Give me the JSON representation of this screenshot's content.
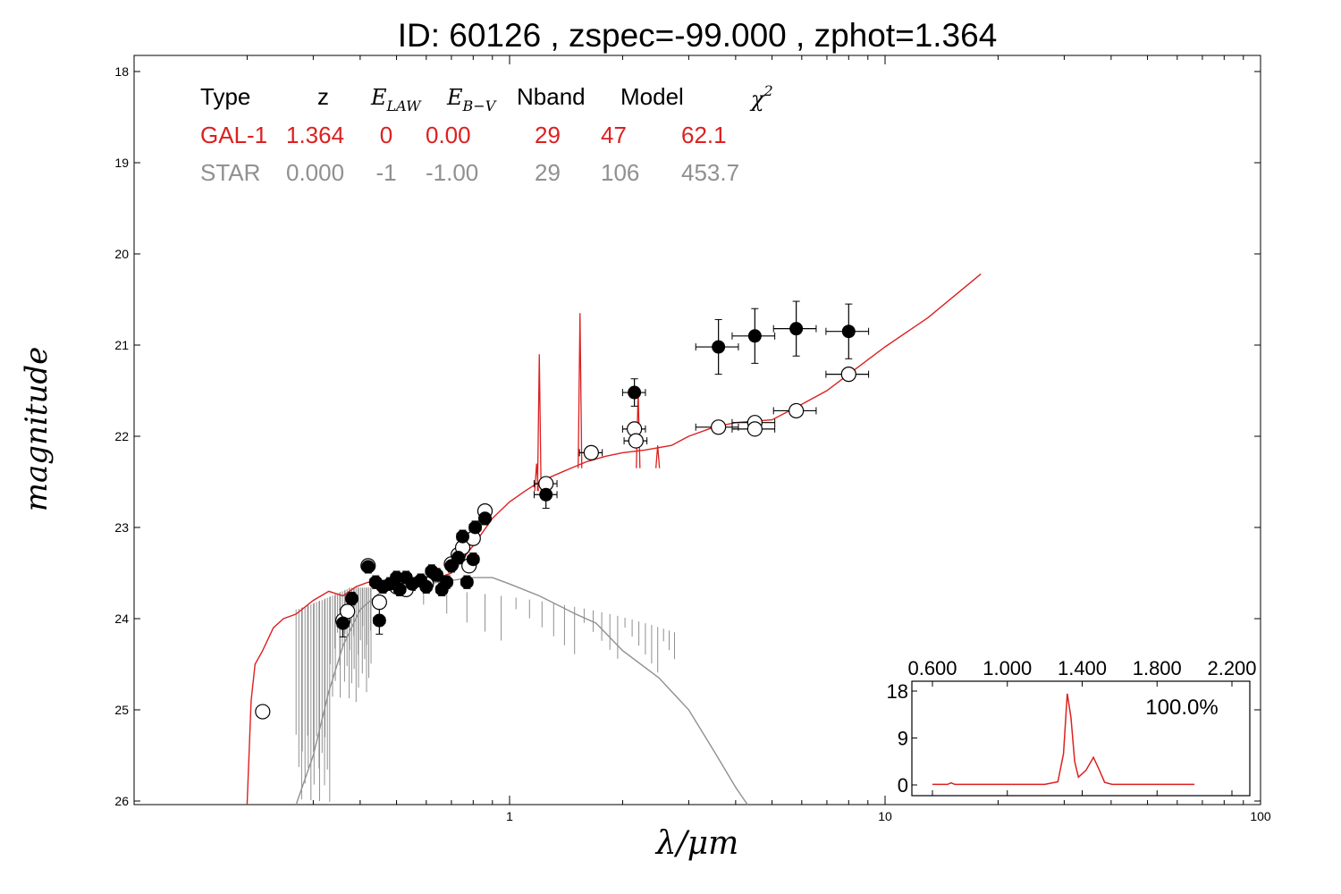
{
  "title": "ID:  60126 , zspec=-99.000 , zphot=1.364",
  "colors": {
    "galaxy": "#dd2020",
    "star": "#909090",
    "axes": "#000000"
  },
  "table": {
    "headers": [
      "Type",
      "z",
      "E",
      "LAW",
      "E",
      "B−V",
      "Nband",
      "Model",
      "χ",
      "2"
    ],
    "rows": [
      {
        "name": "GAL-1",
        "cells": [
          "GAL-1",
          "1.364",
          "0",
          "0.00",
          "29",
          "47",
          "62.1"
        ],
        "color": "#dd2020"
      },
      {
        "name": "STAR",
        "cells": [
          "STAR",
          "0.000",
          "-1",
          "-1.00",
          "29",
          "106",
          "453.7"
        ],
        "color": "#909090"
      }
    ]
  },
  "chart_data": [
    {
      "type": "scatter",
      "xlabel": "λ/μm",
      "ylabel": "magnitude",
      "xscale": "log",
      "xlim": [
        0.1,
        100
      ],
      "ylim": [
        26,
        18
      ],
      "xticks": [
        "1",
        "10",
        "100"
      ],
      "yticks": [
        "18",
        "19",
        "20",
        "21",
        "22",
        "23",
        "24",
        "25",
        "26"
      ],
      "observed_magnitudes": [
        {
          "x": 0.36,
          "y": 24.05
        },
        {
          "x": 0.38,
          "y": 23.78
        },
        {
          "x": 0.42,
          "y": 23.43
        },
        {
          "x": 0.44,
          "y": 23.6
        },
        {
          "x": 0.45,
          "y": 24.02
        },
        {
          "x": 0.46,
          "y": 23.65
        },
        {
          "x": 0.48,
          "y": 23.62
        },
        {
          "x": 0.5,
          "y": 23.55
        },
        {
          "x": 0.51,
          "y": 23.68
        },
        {
          "x": 0.53,
          "y": 23.55
        },
        {
          "x": 0.55,
          "y": 23.62
        },
        {
          "x": 0.58,
          "y": 23.58
        },
        {
          "x": 0.6,
          "y": 23.65
        },
        {
          "x": 0.62,
          "y": 23.48
        },
        {
          "x": 0.64,
          "y": 23.52
        },
        {
          "x": 0.66,
          "y": 23.68
        },
        {
          "x": 0.68,
          "y": 23.6
        },
        {
          "x": 0.7,
          "y": 23.42
        },
        {
          "x": 0.73,
          "y": 23.33
        },
        {
          "x": 0.75,
          "y": 23.1
        },
        {
          "x": 0.77,
          "y": 23.6
        },
        {
          "x": 0.8,
          "y": 23.35
        },
        {
          "x": 0.81,
          "y": 23.0
        },
        {
          "x": 0.86,
          "y": 22.9
        },
        {
          "x": 1.25,
          "y": 22.64
        },
        {
          "x": 2.15,
          "y": 21.52
        },
        {
          "x": 3.6,
          "y": 21.02
        },
        {
          "x": 4.5,
          "y": 20.9
        },
        {
          "x": 5.8,
          "y": 20.82
        },
        {
          "x": 8.0,
          "y": 20.85
        }
      ],
      "model_magnitudes": [
        {
          "x": 0.22,
          "y": 25.02
        },
        {
          "x": 0.36,
          "y": 24.02
        },
        {
          "x": 0.37,
          "y": 23.92
        },
        {
          "x": 0.42,
          "y": 23.42
        },
        {
          "x": 0.45,
          "y": 23.82
        },
        {
          "x": 0.5,
          "y": 23.65
        },
        {
          "x": 0.53,
          "y": 23.68
        },
        {
          "x": 0.6,
          "y": 23.62
        },
        {
          "x": 0.7,
          "y": 23.4
        },
        {
          "x": 0.73,
          "y": 23.3
        },
        {
          "x": 0.75,
          "y": 23.22
        },
        {
          "x": 0.78,
          "y": 23.42
        },
        {
          "x": 0.8,
          "y": 23.12
        },
        {
          "x": 0.86,
          "y": 22.82
        },
        {
          "x": 1.25,
          "y": 22.52
        },
        {
          "x": 1.65,
          "y": 22.18
        },
        {
          "x": 2.15,
          "y": 21.92
        },
        {
          "x": 2.17,
          "y": 22.05
        },
        {
          "x": 3.6,
          "y": 21.9
        },
        {
          "x": 4.5,
          "y": 21.85
        },
        {
          "x": 4.5,
          "y": 21.92
        },
        {
          "x": 5.8,
          "y": 21.72
        },
        {
          "x": 8.0,
          "y": 21.32
        }
      ],
      "galaxy_model_curve": [
        [
          0.2,
          26.1
        ],
        [
          0.205,
          24.9
        ],
        [
          0.21,
          24.5
        ],
        [
          0.22,
          24.35
        ],
        [
          0.235,
          24.1
        ],
        [
          0.25,
          24.0
        ],
        [
          0.27,
          23.95
        ],
        [
          0.3,
          23.8
        ],
        [
          0.33,
          23.7
        ],
        [
          0.36,
          23.75
        ],
        [
          0.39,
          23.65
        ],
        [
          0.42,
          23.6
        ],
        [
          0.5,
          23.62
        ],
        [
          0.6,
          23.6
        ],
        [
          0.7,
          23.5
        ],
        [
          0.8,
          23.2
        ],
        [
          0.9,
          22.9
        ],
        [
          1.0,
          22.72
        ],
        [
          1.1,
          22.6
        ],
        [
          1.2,
          22.5
        ],
        [
          1.4,
          22.38
        ],
        [
          1.6,
          22.28
        ],
        [
          1.8,
          22.22
        ],
        [
          2.0,
          22.18
        ],
        [
          2.3,
          22.15
        ],
        [
          2.7,
          22.1
        ],
        [
          3.0,
          22.0
        ],
        [
          3.5,
          21.9
        ],
        [
          4.0,
          21.85
        ],
        [
          5.0,
          21.82
        ],
        [
          6.0,
          21.65
        ],
        [
          7.0,
          21.5
        ],
        [
          8.0,
          21.32
        ],
        [
          10.0,
          21.02
        ],
        [
          13.0,
          20.7
        ],
        [
          18.0,
          20.22
        ]
      ],
      "galaxy_emission_lines": [
        {
          "x": 1.18,
          "peak": 22.3
        },
        {
          "x": 1.2,
          "peak": 21.1
        },
        {
          "x": 1.54,
          "peak": 20.65
        },
        {
          "x": 2.2,
          "peak": 21.5
        },
        {
          "x": 2.48,
          "peak": 22.1
        }
      ],
      "star_model_curve": [
        [
          0.27,
          26.2
        ],
        [
          0.3,
          25.5
        ],
        [
          0.33,
          24.8
        ],
        [
          0.36,
          24.3
        ],
        [
          0.4,
          23.9
        ],
        [
          0.45,
          23.72
        ],
        [
          0.5,
          23.65
        ],
        [
          0.6,
          23.62
        ],
        [
          0.7,
          23.58
        ],
        [
          0.8,
          23.55
        ],
        [
          0.9,
          23.55
        ],
        [
          1.0,
          23.62
        ],
        [
          1.2,
          23.75
        ],
        [
          1.5,
          23.95
        ],
        [
          1.7,
          24.05
        ],
        [
          2.0,
          24.35
        ],
        [
          2.5,
          24.65
        ],
        [
          3.0,
          25.0
        ],
        [
          3.5,
          25.45
        ],
        [
          4.0,
          25.85
        ],
        [
          4.3,
          26.1
        ]
      ]
    },
    {
      "type": "line",
      "xlim": [
        0.4,
        2.2
      ],
      "ylim": [
        0,
        20
      ],
      "xticks": [
        "0.600",
        "1.000",
        "1.400",
        "1.800",
        "2.200"
      ],
      "yticks": [
        "0",
        "9",
        "18"
      ],
      "annotation": "100.0%",
      "curve": [
        [
          0.6,
          0.1
        ],
        [
          0.68,
          0.1
        ],
        [
          0.7,
          0.4
        ],
        [
          0.72,
          0.1
        ],
        [
          1.2,
          0.1
        ],
        [
          1.27,
          0.6
        ],
        [
          1.3,
          6.0
        ],
        [
          1.32,
          17.5
        ],
        [
          1.34,
          13.0
        ],
        [
          1.36,
          4.5
        ],
        [
          1.38,
          1.5
        ],
        [
          1.42,
          2.8
        ],
        [
          1.46,
          5.3
        ],
        [
          1.49,
          3.0
        ],
        [
          1.52,
          0.5
        ],
        [
          1.56,
          0.1
        ],
        [
          2.0,
          0.1
        ]
      ]
    }
  ]
}
